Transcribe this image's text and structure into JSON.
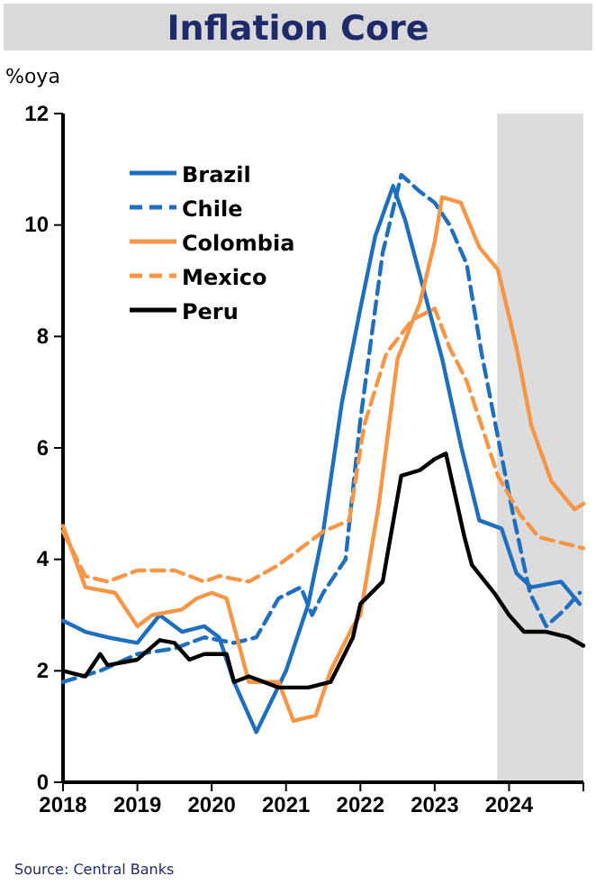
{
  "chart_data": {
    "type": "line",
    "title": "Inflation Core",
    "ylabel": "%oya",
    "xlim": [
      2018,
      2025
    ],
    "xticks": [
      2018,
      2019,
      2020,
      2021,
      2022,
      2023,
      2024,
      {
        "value": 2025,
        "label": null
      }
    ],
    "ylim": [
      0,
      12
    ],
    "yticks": [
      0,
      2,
      4,
      6,
      8,
      10,
      12
    ],
    "grid": false,
    "legend": "top left",
    "bands": [
      {
        "axis": "x",
        "from": 2023.84,
        "to": 2025,
        "color": "#dcdcdc"
      }
    ],
    "annotations": [
      "Source: Central Banks"
    ],
    "series": [
      {
        "name": "Brazil",
        "color": "#1f6fbf",
        "line_style": "solid",
        "x": [
          2018,
          2018.3,
          2018.6,
          2019,
          2019.3,
          2019.6,
          2019.9,
          2020.1,
          2020.3,
          2020.6,
          2021,
          2021.3,
          2021.5,
          2021.75,
          2022,
          2022.2,
          2022.44,
          2022.6,
          2022.88,
          2023.1,
          2023.36,
          2023.6,
          2023.9,
          2024.1,
          2024.3,
          2024.7,
          2024.95
        ],
        "values": [
          2.9,
          2.7,
          2.6,
          2.5,
          3.0,
          2.7,
          2.8,
          2.6,
          1.8,
          0.9,
          2.0,
          3.2,
          4.5,
          6.8,
          8.5,
          9.8,
          10.7,
          10.1,
          8.7,
          7.6,
          6.0,
          4.7,
          4.55,
          3.75,
          3.5,
          3.6,
          3.2
        ]
      },
      {
        "name": "Chile",
        "color": "#1f6fbf",
        "line_style": "dashed",
        "x": [
          2018,
          2018.5,
          2019,
          2019.5,
          2019.9,
          2020.3,
          2020.6,
          2020.9,
          2021.2,
          2021.35,
          2021.5,
          2021.8,
          2022,
          2022.3,
          2022.55,
          2022.8,
          2023,
          2023.2,
          2023.43,
          2023.63,
          2023.82,
          2024.04,
          2024.28,
          2024.5,
          2024.75,
          2024.95
        ],
        "values": [
          1.8,
          2.0,
          2.3,
          2.4,
          2.6,
          2.5,
          2.6,
          3.3,
          3.5,
          3.0,
          3.4,
          4.0,
          6.5,
          9.5,
          10.9,
          10.6,
          10.4,
          10.0,
          9.3,
          7.7,
          6.4,
          4.9,
          3.4,
          2.8,
          3.1,
          3.4
        ]
      },
      {
        "name": "Colombia",
        "color": "#f79646",
        "line_style": "solid",
        "x": [
          2018,
          2018.3,
          2018.7,
          2019,
          2019.2,
          2019.6,
          2019.8,
          2020,
          2020.2,
          2020.5,
          2020.9,
          2021.1,
          2021.4,
          2021.6,
          2021.9,
          2022,
          2022.25,
          2022.5,
          2022.8,
          2023,
          2023.1,
          2023.35,
          2023.6,
          2023.85,
          2024.1,
          2024.3,
          2024.57,
          2024.88,
          2025
        ],
        "values": [
          4.6,
          3.5,
          3.4,
          2.8,
          3.0,
          3.1,
          3.3,
          3.4,
          3.3,
          1.8,
          1.8,
          1.1,
          1.2,
          2.0,
          2.8,
          3.0,
          5.0,
          7.6,
          8.6,
          9.7,
          10.5,
          10.4,
          9.6,
          9.2,
          7.8,
          6.4,
          5.4,
          4.9,
          5.0
        ]
      },
      {
        "name": "Mexico",
        "color": "#f79646",
        "line_style": "dashed",
        "x": [
          2018,
          2018.3,
          2018.6,
          2019,
          2019.5,
          2019.9,
          2020.1,
          2020.5,
          2020.9,
          2021.2,
          2021.5,
          2021.85,
          2022.05,
          2022.35,
          2022.7,
          2023,
          2023.2,
          2023.43,
          2023.63,
          2023.85,
          2024.15,
          2024.4,
          2024.7,
          2025
        ],
        "values": [
          4.5,
          3.7,
          3.6,
          3.8,
          3.8,
          3.6,
          3.7,
          3.6,
          3.9,
          4.2,
          4.5,
          4.7,
          6.4,
          7.7,
          8.3,
          8.5,
          7.8,
          7.2,
          6.4,
          5.5,
          4.8,
          4.4,
          4.3,
          4.2
        ]
      },
      {
        "name": "Peru",
        "color": "#000000",
        "line_style": "solid",
        "x": [
          2018,
          2018.3,
          2018.5,
          2018.6,
          2019,
          2019.3,
          2019.5,
          2019.7,
          2019.9,
          2020.2,
          2020.3,
          2020.5,
          2020.9,
          2021.3,
          2021.6,
          2021.9,
          2022,
          2022.3,
          2022.55,
          2022.8,
          2023,
          2023.15,
          2023.4,
          2023.5,
          2023.8,
          2024,
          2024.2,
          2024.5,
          2024.8,
          2025
        ],
        "values": [
          2.0,
          1.9,
          2.3,
          2.1,
          2.2,
          2.55,
          2.5,
          2.2,
          2.3,
          2.3,
          1.8,
          1.9,
          1.7,
          1.7,
          1.8,
          2.6,
          3.2,
          3.6,
          5.5,
          5.6,
          5.8,
          5.9,
          4.4,
          3.9,
          3.4,
          3.0,
          2.7,
          2.7,
          2.6,
          2.45
        ]
      }
    ]
  }
}
